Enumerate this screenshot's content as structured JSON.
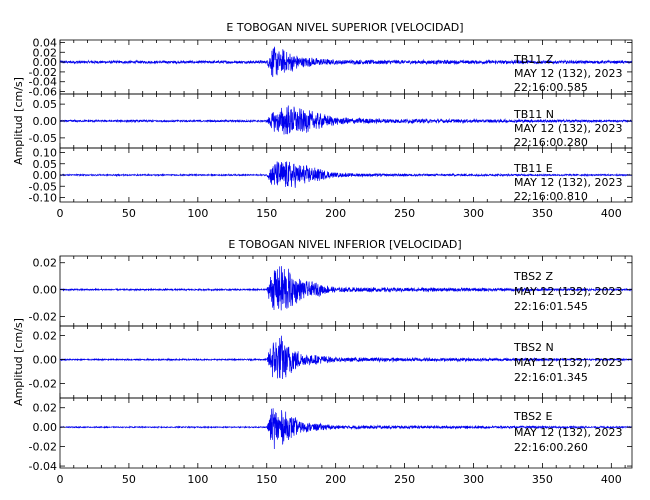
{
  "chart_data": [
    {
      "type": "line",
      "title": "E TOBOGAN NIVEL SUPERIOR [VELOCIDAD]",
      "ylabel": "Amplitud [cm/s]",
      "xlim": [
        0,
        415
      ],
      "x_ticks": [
        "0",
        "50",
        "100",
        "150",
        "200",
        "250",
        "300",
        "350",
        "400"
      ],
      "grid": false,
      "panels": [
        {
          "channel": "TB11   Z",
          "date": "MAY 12 (132), 2023",
          "time": "22:16:00.585",
          "ylim": [
            -0.065,
            0.045
          ],
          "y_ticks": [
            0.04,
            0.02,
            0.0,
            -0.02,
            -0.04,
            -0.06
          ],
          "y_tick_labels": [
            "0.04",
            "0.02",
            "0.00",
            "-0.02",
            "-0.04",
            "-0.06"
          ],
          "series": [
            {
              "envelope": [
                [
                  0,
                  0.003
                ],
                [
                  150,
                  0.003
                ],
                [
                  154,
                  0.035
                ],
                [
                  160,
                  0.03
                ],
                [
                  175,
                  0.012
                ],
                [
                  200,
                  0.005
                ],
                [
                  415,
                  0.003
                ]
              ]
            }
          ]
        },
        {
          "channel": "TB11   N",
          "date": "MAY 12 (132), 2023",
          "time": "22:16:00.280",
          "ylim": [
            -0.08,
            0.08
          ],
          "y_ticks": [
            0.05,
            0.0,
            -0.05
          ],
          "y_tick_labels": [
            "0.05",
            "0.00",
            "-0.05"
          ],
          "series": [
            {
              "envelope": [
                [
                  0,
                  0.003
                ],
                [
                  150,
                  0.003
                ],
                [
                  154,
                  0.03
                ],
                [
                  165,
                  0.05
                ],
                [
                  175,
                  0.04
                ],
                [
                  200,
                  0.012
                ],
                [
                  230,
                  0.007
                ],
                [
                  415,
                  0.003
                ]
              ]
            }
          ]
        },
        {
          "channel": "TB11   E",
          "date": "MAY 12 (132), 2023",
          "time": "22:16:00.810",
          "ylim": [
            -0.12,
            0.12
          ],
          "y_ticks": [
            0.1,
            0.05,
            0.0,
            -0.05,
            -0.1
          ],
          "y_tick_labels": [
            "0.10",
            "0.05",
            "0.00",
            "-0.05",
            "-0.10"
          ],
          "series": [
            {
              "envelope": [
                [
                  0,
                  0.003
                ],
                [
                  150,
                  0.003
                ],
                [
                  154,
                  0.06
                ],
                [
                  165,
                  0.07
                ],
                [
                  175,
                  0.05
                ],
                [
                  200,
                  0.01
                ],
                [
                  230,
                  0.006
                ],
                [
                  415,
                  0.003
                ]
              ]
            }
          ]
        }
      ]
    },
    {
      "type": "line",
      "title": "E TOBOGAN NIVEL INFERIOR [VELOCIDAD]",
      "ylabel": "Amplitud [cm/s]",
      "xlim": [
        0,
        415
      ],
      "x_ticks": [
        "0",
        "50",
        "100",
        "150",
        "200",
        "250",
        "300",
        "350",
        "400"
      ],
      "grid": false,
      "panels": [
        {
          "channel": "TBS2   Z",
          "date": "MAY 12 (132), 2023",
          "time": "22:16:01.545",
          "ylim": [
            -0.027,
            0.025
          ],
          "y_ticks": [
            0.02,
            0.0,
            -0.02
          ],
          "y_tick_labels": [
            "0.02",
            "0.00",
            "-0.02"
          ],
          "series": [
            {
              "envelope": [
                [
                  0,
                  0.0006
                ],
                [
                  150,
                  0.0006
                ],
                [
                  154,
                  0.018
                ],
                [
                  162,
                  0.02
                ],
                [
                  175,
                  0.008
                ],
                [
                  200,
                  0.002
                ],
                [
                  415,
                  0.0006
                ]
              ]
            }
          ]
        },
        {
          "channel": "TBS2   N",
          "date": "MAY 12 (132), 2023",
          "time": "22:16:01.345",
          "ylim": [
            -0.032,
            0.028
          ],
          "y_ticks": [
            0.02,
            0.0,
            -0.02
          ],
          "y_tick_labels": [
            "0.02",
            "0.00",
            "-0.02"
          ],
          "series": [
            {
              "envelope": [
                [
                  0,
                  0.0006
                ],
                [
                  150,
                  0.0006
                ],
                [
                  154,
                  0.02
                ],
                [
                  160,
                  0.022
                ],
                [
                  175,
                  0.006
                ],
                [
                  200,
                  0.002
                ],
                [
                  415,
                  0.0006
                ]
              ]
            }
          ]
        },
        {
          "channel": "TBS2   E",
          "date": "MAY 12 (132), 2023",
          "time": "22:16:00.260",
          "ylim": [
            -0.042,
            0.03
          ],
          "y_ticks": [
            0.02,
            0.0,
            -0.02,
            -0.04
          ],
          "y_tick_labels": [
            "0.02",
            "0.00",
            "-0.02",
            "-0.04"
          ],
          "series": [
            {
              "envelope": [
                [
                  0,
                  0.0006
                ],
                [
                  150,
                  0.0006
                ],
                [
                  154,
                  0.024
                ],
                [
                  160,
                  0.02
                ],
                [
                  175,
                  0.006
                ],
                [
                  200,
                  0.002
                ],
                [
                  415,
                  0.0006
                ]
              ]
            }
          ]
        }
      ]
    }
  ],
  "colors": {
    "trace": "#0000ee",
    "axes": "#000000"
  }
}
